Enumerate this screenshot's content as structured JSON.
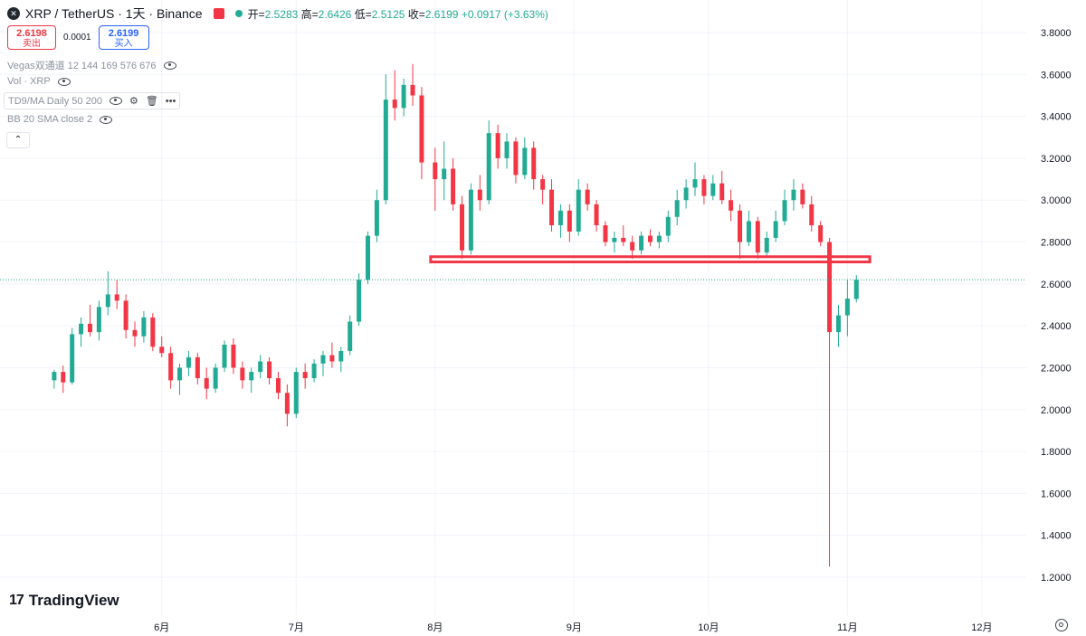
{
  "header": {
    "symbol_logo": "xrp-logo",
    "title": "XRP / TetherUS · 1天 · Binance",
    "ohlc": {
      "open_label": "开=",
      "open": "2.5283",
      "high_label": "高=",
      "high": "2.6426",
      "low_label": "低=",
      "low": "2.5125",
      "close_label": "收=",
      "close": "2.6199",
      "change": "+0.0917 (+3.63%)"
    },
    "up_color": "#22ab94",
    "down_color": "#f23645"
  },
  "trade": {
    "sell_price": "2.6198",
    "sell_label": "卖出",
    "spread": "0.0001",
    "buy_price": "2.6199",
    "buy_label": "买入"
  },
  "indicators": [
    {
      "label": "Vegas双通道 12 144 169 576 676"
    },
    {
      "label": "Vol · XRP"
    },
    {
      "label": "TD9/MA Daily 50 200"
    },
    {
      "label": "BB 20 SMA close 2"
    }
  ],
  "branding": {
    "logo_text": "TradingView",
    "logo_mark": "17"
  },
  "chart_data": {
    "type": "candlestick",
    "y_ticks": [
      "3.8000",
      "3.6000",
      "3.4000",
      "3.2000",
      "3.0000",
      "2.8000",
      "2.6000",
      "2.4000",
      "2.2000",
      "2.0000",
      "1.8000",
      "1.6000",
      "1.4000",
      "1.2000"
    ],
    "x_ticks": [
      "6月",
      "7月",
      "8月",
      "9月",
      "10月",
      "11月",
      "12月"
    ],
    "ylim": [
      1.15,
      3.85
    ],
    "grid": true,
    "current_price": 2.6199,
    "current_price_line_color": "#22ab94",
    "annotation": {
      "type": "rectangle",
      "price_low": 2.705,
      "price_high": 2.73,
      "from": "2025-07-31",
      "to": "2025-11-06",
      "color": "#f23645"
    },
    "candles": [
      {
        "date": "2025-05-08",
        "o": 2.14,
        "h": 2.19,
        "l": 2.1,
        "c": 2.18
      },
      {
        "date": "2025-05-10",
        "o": 2.18,
        "h": 2.21,
        "l": 2.08,
        "c": 2.13
      },
      {
        "date": "2025-05-12",
        "o": 2.13,
        "h": 2.39,
        "l": 2.12,
        "c": 2.36
      },
      {
        "date": "2025-05-14",
        "o": 2.36,
        "h": 2.44,
        "l": 2.3,
        "c": 2.41
      },
      {
        "date": "2025-05-16",
        "o": 2.41,
        "h": 2.5,
        "l": 2.35,
        "c": 2.37
      },
      {
        "date": "2025-05-18",
        "o": 2.37,
        "h": 2.52,
        "l": 2.33,
        "c": 2.49
      },
      {
        "date": "2025-05-20",
        "o": 2.49,
        "h": 2.66,
        "l": 2.45,
        "c": 2.55
      },
      {
        "date": "2025-05-22",
        "o": 2.55,
        "h": 2.62,
        "l": 2.48,
        "c": 2.52
      },
      {
        "date": "2025-05-24",
        "o": 2.52,
        "h": 2.55,
        "l": 2.34,
        "c": 2.38
      },
      {
        "date": "2025-05-26",
        "o": 2.38,
        "h": 2.42,
        "l": 2.3,
        "c": 2.35
      },
      {
        "date": "2025-05-28",
        "o": 2.35,
        "h": 2.47,
        "l": 2.32,
        "c": 2.44
      },
      {
        "date": "2025-05-30",
        "o": 2.44,
        "h": 2.46,
        "l": 2.28,
        "c": 2.3
      },
      {
        "date": "2025-06-01",
        "o": 2.3,
        "h": 2.35,
        "l": 2.25,
        "c": 2.27
      },
      {
        "date": "2025-06-03",
        "o": 2.27,
        "h": 2.3,
        "l": 2.1,
        "c": 2.14
      },
      {
        "date": "2025-06-05",
        "o": 2.14,
        "h": 2.22,
        "l": 2.07,
        "c": 2.2
      },
      {
        "date": "2025-06-07",
        "o": 2.2,
        "h": 2.28,
        "l": 2.16,
        "c": 2.25
      },
      {
        "date": "2025-06-09",
        "o": 2.25,
        "h": 2.27,
        "l": 2.12,
        "c": 2.15
      },
      {
        "date": "2025-06-11",
        "o": 2.15,
        "h": 2.2,
        "l": 2.05,
        "c": 2.1
      },
      {
        "date": "2025-06-13",
        "o": 2.1,
        "h": 2.22,
        "l": 2.08,
        "c": 2.2
      },
      {
        "date": "2025-06-15",
        "o": 2.2,
        "h": 2.33,
        "l": 2.18,
        "c": 2.31
      },
      {
        "date": "2025-06-17",
        "o": 2.31,
        "h": 2.34,
        "l": 2.17,
        "c": 2.2
      },
      {
        "date": "2025-06-19",
        "o": 2.2,
        "h": 2.23,
        "l": 2.1,
        "c": 2.14
      },
      {
        "date": "2025-06-21",
        "o": 2.14,
        "h": 2.2,
        "l": 2.08,
        "c": 2.18
      },
      {
        "date": "2025-06-23",
        "o": 2.18,
        "h": 2.26,
        "l": 2.15,
        "c": 2.23
      },
      {
        "date": "2025-06-25",
        "o": 2.23,
        "h": 2.25,
        "l": 2.12,
        "c": 2.15
      },
      {
        "date": "2025-06-27",
        "o": 2.15,
        "h": 2.18,
        "l": 2.05,
        "c": 2.08
      },
      {
        "date": "2025-06-29",
        "o": 2.08,
        "h": 2.12,
        "l": 1.92,
        "c": 1.98
      },
      {
        "date": "2025-07-01",
        "o": 1.98,
        "h": 2.2,
        "l": 1.96,
        "c": 2.18
      },
      {
        "date": "2025-07-03",
        "o": 2.18,
        "h": 2.22,
        "l": 2.1,
        "c": 2.15
      },
      {
        "date": "2025-07-05",
        "o": 2.15,
        "h": 2.24,
        "l": 2.13,
        "c": 2.22
      },
      {
        "date": "2025-07-07",
        "o": 2.22,
        "h": 2.28,
        "l": 2.16,
        "c": 2.26
      },
      {
        "date": "2025-07-09",
        "o": 2.26,
        "h": 2.32,
        "l": 2.2,
        "c": 2.23
      },
      {
        "date": "2025-07-11",
        "o": 2.23,
        "h": 2.3,
        "l": 2.18,
        "c": 2.28
      },
      {
        "date": "2025-07-13",
        "o": 2.28,
        "h": 2.45,
        "l": 2.26,
        "c": 2.42
      },
      {
        "date": "2025-07-15",
        "o": 2.42,
        "h": 2.65,
        "l": 2.4,
        "c": 2.62
      },
      {
        "date": "2025-07-17",
        "o": 2.62,
        "h": 2.85,
        "l": 2.6,
        "c": 2.83
      },
      {
        "date": "2025-07-19",
        "o": 2.83,
        "h": 3.05,
        "l": 2.8,
        "c": 3.0
      },
      {
        "date": "2025-07-21",
        "o": 3.0,
        "h": 3.6,
        "l": 2.98,
        "c": 3.48
      },
      {
        "date": "2025-07-23",
        "o": 3.48,
        "h": 3.62,
        "l": 3.38,
        "c": 3.44
      },
      {
        "date": "2025-07-25",
        "o": 3.44,
        "h": 3.58,
        "l": 3.4,
        "c": 3.55
      },
      {
        "date": "2025-07-27",
        "o": 3.55,
        "h": 3.65,
        "l": 3.45,
        "c": 3.5
      },
      {
        "date": "2025-07-29",
        "o": 3.5,
        "h": 3.54,
        "l": 3.1,
        "c": 3.18
      },
      {
        "date": "2025-08-01",
        "o": 3.18,
        "h": 3.25,
        "l": 2.95,
        "c": 3.1
      },
      {
        "date": "2025-08-03",
        "o": 3.1,
        "h": 3.28,
        "l": 3.0,
        "c": 3.15
      },
      {
        "date": "2025-08-05",
        "o": 3.15,
        "h": 3.2,
        "l": 2.95,
        "c": 2.98
      },
      {
        "date": "2025-08-07",
        "o": 2.98,
        "h": 3.02,
        "l": 2.72,
        "c": 2.76
      },
      {
        "date": "2025-08-09",
        "o": 2.76,
        "h": 3.08,
        "l": 2.74,
        "c": 3.05
      },
      {
        "date": "2025-08-11",
        "o": 3.05,
        "h": 3.12,
        "l": 2.95,
        "c": 3.0
      },
      {
        "date": "2025-08-13",
        "o": 3.0,
        "h": 3.38,
        "l": 2.98,
        "c": 3.32
      },
      {
        "date": "2025-08-15",
        "o": 3.32,
        "h": 3.36,
        "l": 3.15,
        "c": 3.2
      },
      {
        "date": "2025-08-17",
        "o": 3.2,
        "h": 3.32,
        "l": 3.15,
        "c": 3.28
      },
      {
        "date": "2025-08-19",
        "o": 3.28,
        "h": 3.3,
        "l": 3.08,
        "c": 3.12
      },
      {
        "date": "2025-08-21",
        "o": 3.12,
        "h": 3.3,
        "l": 3.1,
        "c": 3.25
      },
      {
        "date": "2025-08-23",
        "o": 3.25,
        "h": 3.28,
        "l": 3.05,
        "c": 3.1
      },
      {
        "date": "2025-08-25",
        "o": 3.1,
        "h": 3.12,
        "l": 2.98,
        "c": 3.05
      },
      {
        "date": "2025-08-27",
        "o": 3.05,
        "h": 3.1,
        "l": 2.85,
        "c": 2.88
      },
      {
        "date": "2025-08-29",
        "o": 2.88,
        "h": 2.98,
        "l": 2.82,
        "c": 2.95
      },
      {
        "date": "2025-08-31",
        "o": 2.95,
        "h": 2.98,
        "l": 2.8,
        "c": 2.85
      },
      {
        "date": "2025-09-02",
        "o": 2.85,
        "h": 3.1,
        "l": 2.83,
        "c": 3.05
      },
      {
        "date": "2025-09-04",
        "o": 3.05,
        "h": 3.08,
        "l": 2.95,
        "c": 2.98
      },
      {
        "date": "2025-09-06",
        "o": 2.98,
        "h": 3.0,
        "l": 2.85,
        "c": 2.88
      },
      {
        "date": "2025-09-08",
        "o": 2.88,
        "h": 2.9,
        "l": 2.78,
        "c": 2.8
      },
      {
        "date": "2025-09-10",
        "o": 2.8,
        "h": 2.85,
        "l": 2.75,
        "c": 2.82
      },
      {
        "date": "2025-09-12",
        "o": 2.82,
        "h": 2.88,
        "l": 2.78,
        "c": 2.8
      },
      {
        "date": "2025-09-14",
        "o": 2.8,
        "h": 2.83,
        "l": 2.72,
        "c": 2.76
      },
      {
        "date": "2025-09-16",
        "o": 2.76,
        "h": 2.85,
        "l": 2.74,
        "c": 2.83
      },
      {
        "date": "2025-09-18",
        "o": 2.83,
        "h": 2.86,
        "l": 2.78,
        "c": 2.8
      },
      {
        "date": "2025-09-20",
        "o": 2.8,
        "h": 2.85,
        "l": 2.77,
        "c": 2.83
      },
      {
        "date": "2025-09-22",
        "o": 2.83,
        "h": 2.95,
        "l": 2.8,
        "c": 2.92
      },
      {
        "date": "2025-09-24",
        "o": 2.92,
        "h": 3.05,
        "l": 2.88,
        "c": 3.0
      },
      {
        "date": "2025-09-26",
        "o": 3.0,
        "h": 3.1,
        "l": 2.96,
        "c": 3.06
      },
      {
        "date": "2025-09-28",
        "o": 3.06,
        "h": 3.18,
        "l": 3.02,
        "c": 3.1
      },
      {
        "date": "2025-09-30",
        "o": 3.1,
        "h": 3.12,
        "l": 2.98,
        "c": 3.02
      },
      {
        "date": "2025-10-02",
        "o": 3.02,
        "h": 3.12,
        "l": 3.0,
        "c": 3.08
      },
      {
        "date": "2025-10-04",
        "o": 3.08,
        "h": 3.14,
        "l": 2.98,
        "c": 3.0
      },
      {
        "date": "2025-10-06",
        "o": 3.0,
        "h": 3.05,
        "l": 2.9,
        "c": 2.95
      },
      {
        "date": "2025-10-08",
        "o": 2.95,
        "h": 2.98,
        "l": 2.72,
        "c": 2.8
      },
      {
        "date": "2025-10-10",
        "o": 2.8,
        "h": 2.95,
        "l": 2.78,
        "c": 2.9
      },
      {
        "date": "2025-10-12",
        "o": 2.9,
        "h": 2.92,
        "l": 2.72,
        "c": 2.75
      },
      {
        "date": "2025-10-14",
        "o": 2.75,
        "h": 2.85,
        "l": 2.73,
        "c": 2.82
      },
      {
        "date": "2025-10-16",
        "o": 2.82,
        "h": 2.95,
        "l": 2.8,
        "c": 2.9
      },
      {
        "date": "2025-10-18",
        "o": 2.9,
        "h": 3.05,
        "l": 2.88,
        "c": 3.0
      },
      {
        "date": "2025-10-20",
        "o": 3.0,
        "h": 3.1,
        "l": 2.95,
        "c": 3.05
      },
      {
        "date": "2025-10-22",
        "o": 3.05,
        "h": 3.08,
        "l": 2.96,
        "c": 2.98
      },
      {
        "date": "2025-10-24",
        "o": 2.98,
        "h": 3.02,
        "l": 2.85,
        "c": 2.88
      },
      {
        "date": "2025-10-26",
        "o": 2.88,
        "h": 2.9,
        "l": 2.78,
        "c": 2.8
      },
      {
        "date": "2025-10-28",
        "o": 2.8,
        "h": 2.82,
        "l": 1.25,
        "c": 2.37
      },
      {
        "date": "2025-10-30",
        "o": 2.37,
        "h": 2.5,
        "l": 2.3,
        "c": 2.45
      },
      {
        "date": "2025-11-01",
        "o": 2.45,
        "h": 2.62,
        "l": 2.35,
        "c": 2.53
      },
      {
        "date": "2025-11-03",
        "o": 2.5283,
        "h": 2.6426,
        "l": 2.5125,
        "c": 2.6199
      }
    ]
  }
}
